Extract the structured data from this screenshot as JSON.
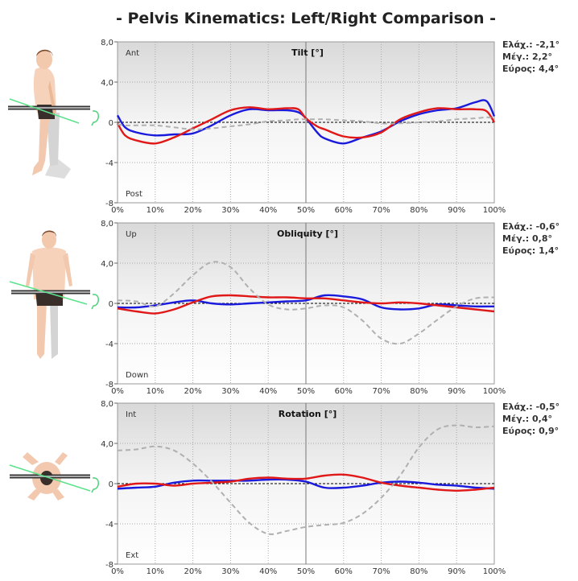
{
  "title": "- Pelvis Kinematics: Left/Right Comparison -",
  "colors": {
    "blue": "#1a1adc",
    "red": "#e01818",
    "gray": "#b0b0b0"
  },
  "stat_labels": {
    "min": "Ελάχ.:",
    "max": "Μέγ.:",
    "range": "Εύρος:"
  },
  "chart_data": [
    {
      "type": "line",
      "title": "Tilt [°]",
      "top_label": "Ant",
      "bottom_label": "Post",
      "ylim": [
        -8,
        8
      ],
      "y_ticks": [
        "8,0",
        "4,0",
        "0",
        "-4",
        "-8"
      ],
      "y_tick_values": [
        8,
        4,
        0,
        -4,
        -8
      ],
      "x_ticks": [
        "0%",
        "10%",
        "20%",
        "30%",
        "40%",
        "50%",
        "60%",
        "70%",
        "80%",
        "90%",
        "100%"
      ],
      "stats": {
        "min": "-2,1°",
        "max": "2,2°",
        "range": "4,4°"
      },
      "x": [
        0,
        2,
        5,
        10,
        15,
        20,
        25,
        30,
        35,
        40,
        45,
        48,
        50,
        53,
        55,
        60,
        65,
        70,
        75,
        80,
        85,
        90,
        95,
        98,
        100
      ],
      "series": [
        {
          "color": "blue",
          "dashed": false,
          "values": [
            0.7,
            -0.5,
            -1.0,
            -1.3,
            -1.2,
            -1.1,
            -0.3,
            0.7,
            1.3,
            1.2,
            1.2,
            1.0,
            0.4,
            -1.0,
            -1.6,
            -2.1,
            -1.5,
            -0.9,
            0.1,
            0.8,
            1.2,
            1.4,
            2.0,
            2.1,
            0.6
          ]
        },
        {
          "color": "red",
          "dashed": false,
          "values": [
            -0.1,
            -1.3,
            -1.8,
            -2.1,
            -1.5,
            -0.6,
            0.3,
            1.2,
            1.5,
            1.3,
            1.4,
            1.3,
            0.4,
            -0.4,
            -0.7,
            -1.4,
            -1.5,
            -1.0,
            0.3,
            1.0,
            1.4,
            1.3,
            1.3,
            1.1,
            0.0
          ]
        },
        {
          "color": "gray",
          "dashed": true,
          "values": [
            -0.2,
            -0.3,
            -0.3,
            -0.3,
            -0.5,
            -0.7,
            -0.6,
            -0.4,
            -0.2,
            0.1,
            0.2,
            0.3,
            0.3,
            0.3,
            0.3,
            0.2,
            0.1,
            -0.1,
            -0.1,
            0.0,
            0.1,
            0.3,
            0.4,
            0.5,
            0.4
          ]
        }
      ]
    },
    {
      "type": "line",
      "title": "Obliquity [°]",
      "top_label": "Up",
      "bottom_label": "Down",
      "ylim": [
        -8,
        8
      ],
      "y_ticks": [
        "8,0",
        "4,0",
        "0",
        "-4",
        "-8"
      ],
      "y_tick_values": [
        8,
        4,
        0,
        -4,
        -8
      ],
      "x_ticks": [
        "0%",
        "10%",
        "20%",
        "30%",
        "40%",
        "50%",
        "60%",
        "70%",
        "80%",
        "90%",
        "100%"
      ],
      "stats": {
        "min": "-0,6°",
        "max": "0,8°",
        "range": "1,4°"
      },
      "x": [
        0,
        5,
        10,
        15,
        20,
        25,
        30,
        35,
        40,
        45,
        50,
        55,
        60,
        65,
        70,
        75,
        80,
        85,
        90,
        95,
        100
      ],
      "series": [
        {
          "color": "blue",
          "dashed": false,
          "values": [
            -0.4,
            -0.4,
            -0.2,
            0.1,
            0.3,
            0.0,
            -0.1,
            0.0,
            0.1,
            0.2,
            0.3,
            0.8,
            0.7,
            0.4,
            -0.4,
            -0.6,
            -0.5,
            -0.1,
            -0.2,
            -0.3,
            -0.3
          ]
        },
        {
          "color": "red",
          "dashed": false,
          "values": [
            -0.5,
            -0.8,
            -1.0,
            -0.6,
            0.1,
            0.7,
            0.8,
            0.7,
            0.6,
            0.6,
            0.5,
            0.5,
            0.3,
            0.1,
            0.0,
            0.1,
            0.0,
            -0.2,
            -0.4,
            -0.6,
            -0.8
          ]
        },
        {
          "color": "gray",
          "dashed": true,
          "values": [
            0.3,
            0.2,
            -0.3,
            1.0,
            2.8,
            4.1,
            3.6,
            1.5,
            -0.1,
            -0.6,
            -0.5,
            -0.2,
            -0.4,
            -1.7,
            -3.5,
            -4.0,
            -3.0,
            -1.6,
            -0.3,
            0.5,
            0.6
          ]
        }
      ]
    },
    {
      "type": "line",
      "title": "Rotation [°]",
      "top_label": "Int",
      "bottom_label": "Ext",
      "ylim": [
        -8,
        8
      ],
      "y_ticks": [
        "8,0",
        "4,0",
        "0",
        "-4",
        "-8"
      ],
      "y_tick_values": [
        8,
        4,
        0,
        -4,
        -8
      ],
      "x_ticks": [
        "0%",
        "10%",
        "20%",
        "30%",
        "40%",
        "50%",
        "60%",
        "70%",
        "80%",
        "90%",
        "100%"
      ],
      "stats": {
        "min": "-0,5°",
        "max": "0,4°",
        "range": "0,9°"
      },
      "x": [
        0,
        5,
        10,
        15,
        20,
        25,
        30,
        35,
        40,
        45,
        50,
        55,
        60,
        65,
        70,
        75,
        80,
        85,
        90,
        95,
        100
      ],
      "series": [
        {
          "color": "blue",
          "dashed": false,
          "values": [
            -0.5,
            -0.4,
            -0.3,
            0.1,
            0.3,
            0.3,
            0.3,
            0.3,
            0.4,
            0.4,
            0.2,
            -0.4,
            -0.4,
            -0.2,
            0.1,
            0.2,
            0.1,
            -0.1,
            -0.2,
            -0.4,
            -0.5
          ]
        },
        {
          "color": "red",
          "dashed": false,
          "values": [
            -0.3,
            0.0,
            0.0,
            -0.2,
            0.0,
            0.1,
            0.2,
            0.5,
            0.6,
            0.5,
            0.5,
            0.8,
            0.9,
            0.6,
            0.1,
            -0.2,
            -0.4,
            -0.6,
            -0.7,
            -0.6,
            -0.4
          ]
        },
        {
          "color": "gray",
          "dashed": true,
          "values": [
            3.3,
            3.4,
            3.7,
            3.3,
            2.0,
            0.2,
            -1.9,
            -3.9,
            -5.0,
            -4.7,
            -4.3,
            -4.1,
            -3.9,
            -3.0,
            -1.4,
            0.8,
            3.6,
            5.4,
            5.8,
            5.6,
            5.7
          ]
        }
      ]
    }
  ]
}
